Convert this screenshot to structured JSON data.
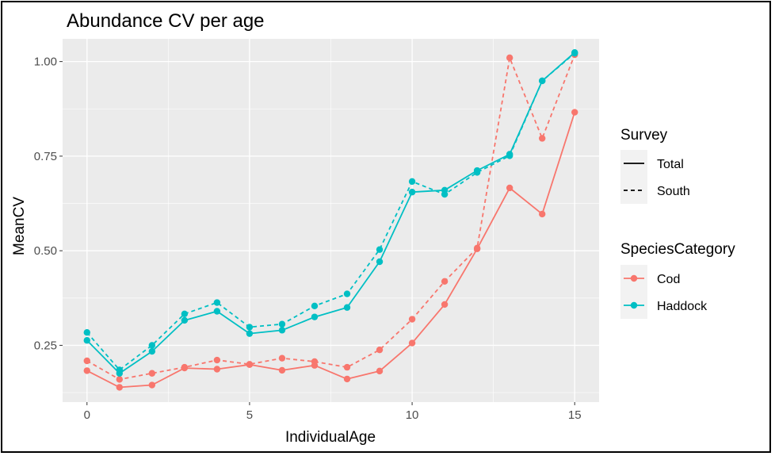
{
  "chart_data": {
    "type": "line",
    "title": "Abundance CV per age",
    "xlabel": "IndividualAge",
    "ylabel": "MeanCV",
    "xlim": [
      -0.75,
      15.75
    ],
    "ylim": [
      0.1,
      1.06
    ],
    "x_ticks": [
      0,
      5,
      10,
      15
    ],
    "x_tick_labels": [
      "0",
      "5",
      "10",
      "15"
    ],
    "y_ticks": [
      0.25,
      0.5,
      0.75,
      1.0
    ],
    "y_tick_labels": [
      "0.25",
      "0.50",
      "0.75",
      "1.00"
    ],
    "grid": true,
    "legend_position": "right",
    "legends": [
      {
        "title": "Survey",
        "entries": [
          {
            "label": "Total",
            "linetype": "solid"
          },
          {
            "label": "South",
            "linetype": "dashed"
          }
        ]
      },
      {
        "title": "SpeciesCategory",
        "entries": [
          {
            "label": "Cod",
            "color": "#F8766D"
          },
          {
            "label": "Haddock",
            "color": "#00BFC4"
          }
        ]
      }
    ],
    "x": [
      0,
      1,
      2,
      3,
      4,
      5,
      6,
      7,
      8,
      9,
      10,
      11,
      12,
      13,
      14,
      15
    ],
    "series": [
      {
        "species": "Cod",
        "survey": "Total",
        "color": "#F8766D",
        "linetype": "solid",
        "values": [
          0.183,
          0.139,
          0.145,
          0.19,
          0.187,
          0.199,
          0.184,
          0.197,
          0.161,
          0.182,
          0.256,
          0.358,
          0.505,
          0.666,
          0.597,
          0.866
        ]
      },
      {
        "species": "Cod",
        "survey": "South",
        "color": "#F8766D",
        "linetype": "dashed",
        "values": [
          0.209,
          0.16,
          0.176,
          0.192,
          0.211,
          0.2,
          0.216,
          0.207,
          0.192,
          0.238,
          0.319,
          0.419,
          0.507,
          1.01,
          0.797,
          1.018
        ]
      },
      {
        "species": "Haddock",
        "survey": "Total",
        "color": "#00BFC4",
        "linetype": "solid",
        "values": [
          0.263,
          0.176,
          0.234,
          0.316,
          0.34,
          0.281,
          0.29,
          0.325,
          0.35,
          0.471,
          0.655,
          0.66,
          0.712,
          0.755,
          0.949,
          1.024
        ]
      },
      {
        "species": "Haddock",
        "survey": "South",
        "color": "#00BFC4",
        "linetype": "dashed",
        "values": [
          0.284,
          0.185,
          0.25,
          0.333,
          0.363,
          0.298,
          0.306,
          0.354,
          0.386,
          0.503,
          0.683,
          0.649,
          0.707,
          0.751,
          0.949,
          1.022
        ]
      }
    ]
  }
}
